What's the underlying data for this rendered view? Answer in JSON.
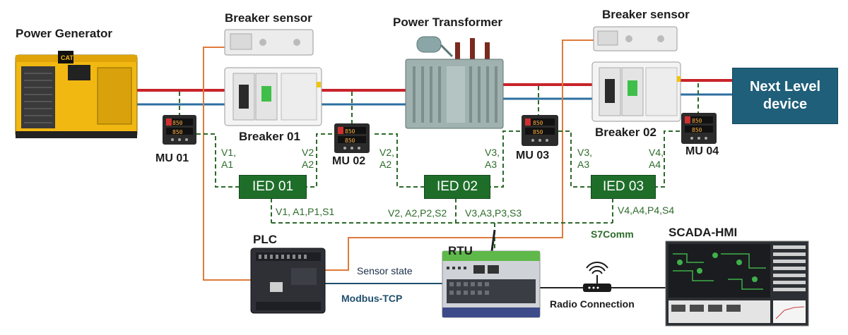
{
  "devices": {
    "generator": "Power Generator",
    "breaker_sensor_1": "Breaker sensor",
    "breaker_sensor_2": "Breaker sensor",
    "transformer": "Power Transformer",
    "breaker_01": "Breaker 01",
    "breaker_02": "Breaker 02",
    "next_level_line1": "Next Level",
    "next_level_line2": "device",
    "plc": "PLC",
    "rtu": "RTU",
    "scada": "SCADA-HMI"
  },
  "merging_units": [
    "MU 01",
    "MU 02",
    "MU 03",
    "MU 04"
  ],
  "mu_display": "850",
  "ieds": [
    "IED 01",
    "IED 02",
    "IED 03"
  ],
  "ied_inputs": [
    {
      "a": "V1,",
      "b": "A1"
    },
    {
      "a": "V2",
      "b": "A2"
    },
    {
      "a": "V2,",
      "b": "A2"
    },
    {
      "a": "V3,",
      "b": "A3"
    },
    {
      "a": "V3,",
      "b": "A3"
    },
    {
      "a": "V4,",
      "b": "A4"
    }
  ],
  "bus_signals": [
    "V1, A1,P1,S1",
    "V2, A2,P2,S2",
    "V3,A3,P3,S3",
    "V4,A4,P4,S4"
  ],
  "links": {
    "s7comm": "S7Comm",
    "sensor_state": "Sensor state",
    "modbus": "Modbus-TCP",
    "radio": "Radio Connection"
  },
  "colors": {
    "line_red": "#c8232a",
    "line_blue": "#2e6fa0",
    "dashed_green": "#2d6b2a",
    "sensor_orange": "#e07a3a",
    "ied_green": "#1e6e2a",
    "next_level_blue": "#1f5f7a"
  }
}
